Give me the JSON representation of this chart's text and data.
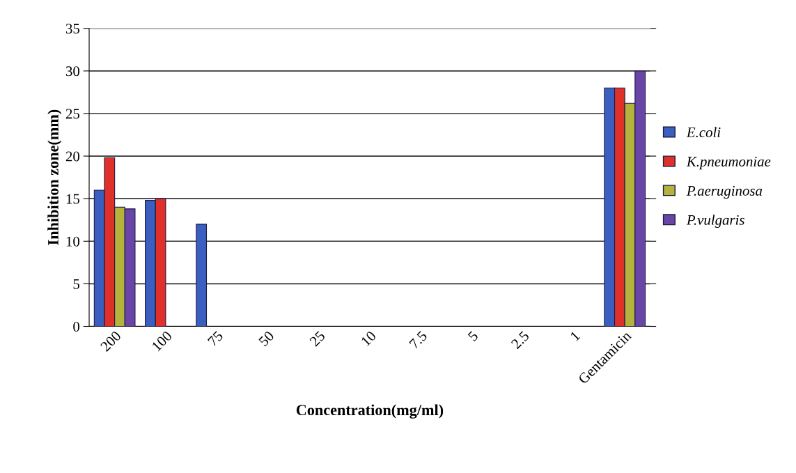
{
  "chart_data": {
    "type": "bar",
    "xlabel": "Concentration(mg/ml)",
    "ylabel": "Inhibition zone(mm)",
    "categories": [
      "200",
      "100",
      "75",
      "50",
      "25",
      "10",
      "7.5",
      "5",
      "2.5",
      "1",
      "Gentamicin"
    ],
    "series": [
      {
        "name": "E.coli",
        "color": "#3b5fc0",
        "values": [
          16,
          14.8,
          12,
          null,
          null,
          null,
          null,
          null,
          null,
          null,
          28
        ]
      },
      {
        "name": "K.pneumoniae",
        "color": "#e0302a",
        "values": [
          19.8,
          15,
          null,
          null,
          null,
          null,
          null,
          null,
          null,
          null,
          28
        ]
      },
      {
        "name": "P.aeruginosa",
        "color": "#b5b33c",
        "values": [
          14,
          null,
          null,
          null,
          null,
          null,
          null,
          null,
          null,
          null,
          26.2
        ]
      },
      {
        "name": "P.vulgaris",
        "color": "#6a45a8",
        "values": [
          13.8,
          null,
          null,
          null,
          null,
          null,
          null,
          null,
          null,
          null,
          30
        ]
      }
    ],
    "ylim": [
      0,
      35
    ],
    "yticks": [
      0,
      5,
      10,
      15,
      20,
      25,
      30,
      35
    ],
    "grid": "y",
    "legend": "right"
  }
}
